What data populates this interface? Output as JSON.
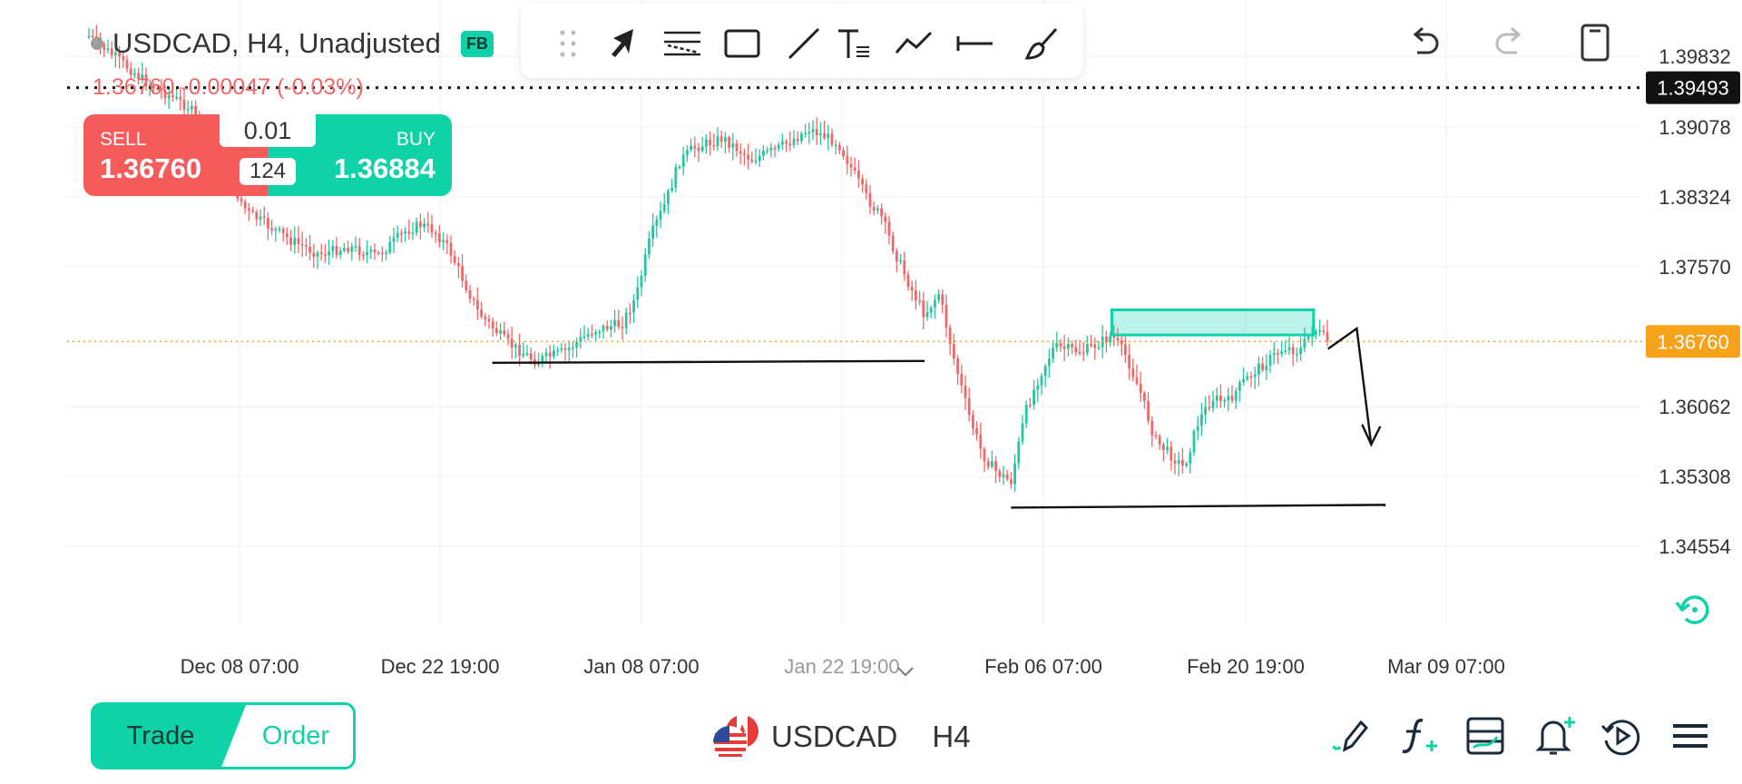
{
  "symbol_header": {
    "title": "USDCAD, H4, Unadjusted",
    "broker_badge": "FB",
    "change_line": "1.36760 -0.00047 (-0.03%)"
  },
  "trade_widget": {
    "sell_label": "SELL",
    "sell_price": "1.36760",
    "buy_label": "BUY",
    "buy_price": "1.36884",
    "lot_size": "0.01",
    "spread": "124"
  },
  "drawing_toolbar": {
    "tools": [
      "drag-handle-icon",
      "cursor-arrow-icon",
      "fib-retracement-icon",
      "rectangle-icon",
      "trend-line-icon",
      "text-tool-icon",
      "polyline-icon",
      "horizontal-line-icon",
      "brush-icon"
    ]
  },
  "top_right_controls": [
    "undo-icon",
    "redo-icon",
    "layout-icon"
  ],
  "price_axis": {
    "ticks": [
      "1.39832",
      "1.39078",
      "1.38324",
      "1.37570",
      "1.36062",
      "1.35308",
      "1.34554"
    ],
    "crosshair_label": "1.39493",
    "current_price_label": "1.36760"
  },
  "time_axis": {
    "ticks": [
      "Dec 08 07:00",
      "Dec 22 19:00",
      "Jan 08 07:00",
      "Jan 22 19:00",
      "Feb 06 07:00",
      "Feb 20 19:00",
      "Mar 09 07:00"
    ]
  },
  "bottom_bar": {
    "trade_label": "Trade",
    "order_label": "Order",
    "symbol": "USDCAD",
    "timeframe": "H4",
    "icons": [
      "draw-pencil-icon",
      "indicators-icon",
      "templates-icon",
      "add-alert-icon",
      "replay-icon",
      "menu-icon"
    ]
  },
  "colors": {
    "bull": "#26c6a0",
    "bear": "#f06868",
    "accent": "#0ed2a8",
    "sell": "#f65b5b",
    "price_tag": "#f7a21b"
  },
  "chart_data": {
    "type": "candlestick",
    "symbol": "USDCAD",
    "timeframe": "H4",
    "ylim": [
      1.3418,
      1.4009
    ],
    "current_price": 1.3676,
    "crosshair_price": 1.39493,
    "path_start_date": "2023-11-27",
    "close_path": [
      [
        "2023-11-27",
        1.4005
      ],
      [
        "2023-12-01",
        1.3955
      ],
      [
        "2023-12-04",
        1.3928
      ],
      [
        "2023-12-06",
        1.387
      ],
      [
        "2023-12-08",
        1.3815
      ],
      [
        "2023-12-11",
        1.3785
      ],
      [
        "2023-12-13",
        1.377
      ],
      [
        "2023-12-15",
        1.3778
      ],
      [
        "2023-12-17",
        1.3768
      ],
      [
        "2023-12-19",
        1.3795
      ],
      [
        "2023-12-20",
        1.3802
      ],
      [
        "2023-12-21",
        1.3795
      ],
      [
        "2023-12-22",
        1.3775
      ],
      [
        "2023-12-24",
        1.3708
      ],
      [
        "2023-12-26",
        1.3675
      ],
      [
        "2023-12-28",
        1.3655
      ],
      [
        "2023-12-30",
        1.3665
      ],
      [
        "2024-01-01",
        1.3688
      ],
      [
        "2024-01-03",
        1.3695
      ],
      [
        "2024-01-04",
        1.3725
      ],
      [
        "2024-01-05",
        1.379
      ],
      [
        "2024-01-06",
        1.3825
      ],
      [
        "2024-01-07",
        1.387
      ],
      [
        "2024-01-08",
        1.3885
      ],
      [
        "2024-01-10",
        1.3895
      ],
      [
        "2024-01-12",
        1.3872
      ],
      [
        "2024-01-14",
        1.3885
      ],
      [
        "2024-01-16",
        1.3905
      ],
      [
        "2024-01-18",
        1.389
      ],
      [
        "2024-01-20",
        1.383
      ],
      [
        "2024-01-21",
        1.381
      ],
      [
        "2024-01-22",
        1.377
      ],
      [
        "2024-01-23",
        1.3735
      ],
      [
        "2024-01-24",
        1.3705
      ],
      [
        "2024-01-25",
        1.3728
      ],
      [
        "2024-01-26",
        1.366
      ],
      [
        "2024-01-27",
        1.36
      ],
      [
        "2024-01-28",
        1.3555
      ],
      [
        "2024-01-29",
        1.3535
      ],
      [
        "2024-01-30",
        1.3525
      ],
      [
        "2024-01-31",
        1.36
      ],
      [
        "2024-02-01",
        1.364
      ],
      [
        "2024-02-02",
        1.367
      ],
      [
        "2024-02-04",
        1.3665
      ],
      [
        "2024-02-06",
        1.3682
      ],
      [
        "2024-02-07",
        1.366
      ],
      [
        "2024-02-08",
        1.362
      ],
      [
        "2024-02-09",
        1.357
      ],
      [
        "2024-02-10",
        1.3555
      ],
      [
        "2024-02-11",
        1.354
      ],
      [
        "2024-02-12",
        1.359
      ],
      [
        "2024-02-13",
        1.3615
      ],
      [
        "2024-02-14",
        1.361
      ],
      [
        "2024-02-15",
        1.363
      ],
      [
        "2024-02-16",
        1.3645
      ],
      [
        "2024-02-18",
        1.367
      ],
      [
        "2024-02-19",
        1.3665
      ],
      [
        "2024-02-20",
        1.369
      ],
      [
        "2024-02-21",
        1.3676
      ]
    ],
    "annotations": {
      "support_line_1": {
        "from": [
          "2023-12-25",
          1.3653
        ],
        "to": [
          "2024-01-24",
          1.3655
        ]
      },
      "support_line_2": {
        "from": [
          "2024-01-30",
          1.3497
        ],
        "to": [
          "2024-02-25",
          1.35
        ]
      },
      "supply_zone": {
        "x_from": "2024-02-06",
        "x_to": "2024-02-20",
        "y_from": 1.3683,
        "y_to": 1.371
      },
      "projected_path": [
        [
          "2024-02-21",
          1.3668
        ],
        [
          "2024-02-23",
          1.369
        ],
        [
          "2024-02-24",
          1.3565
        ]
      ]
    }
  }
}
